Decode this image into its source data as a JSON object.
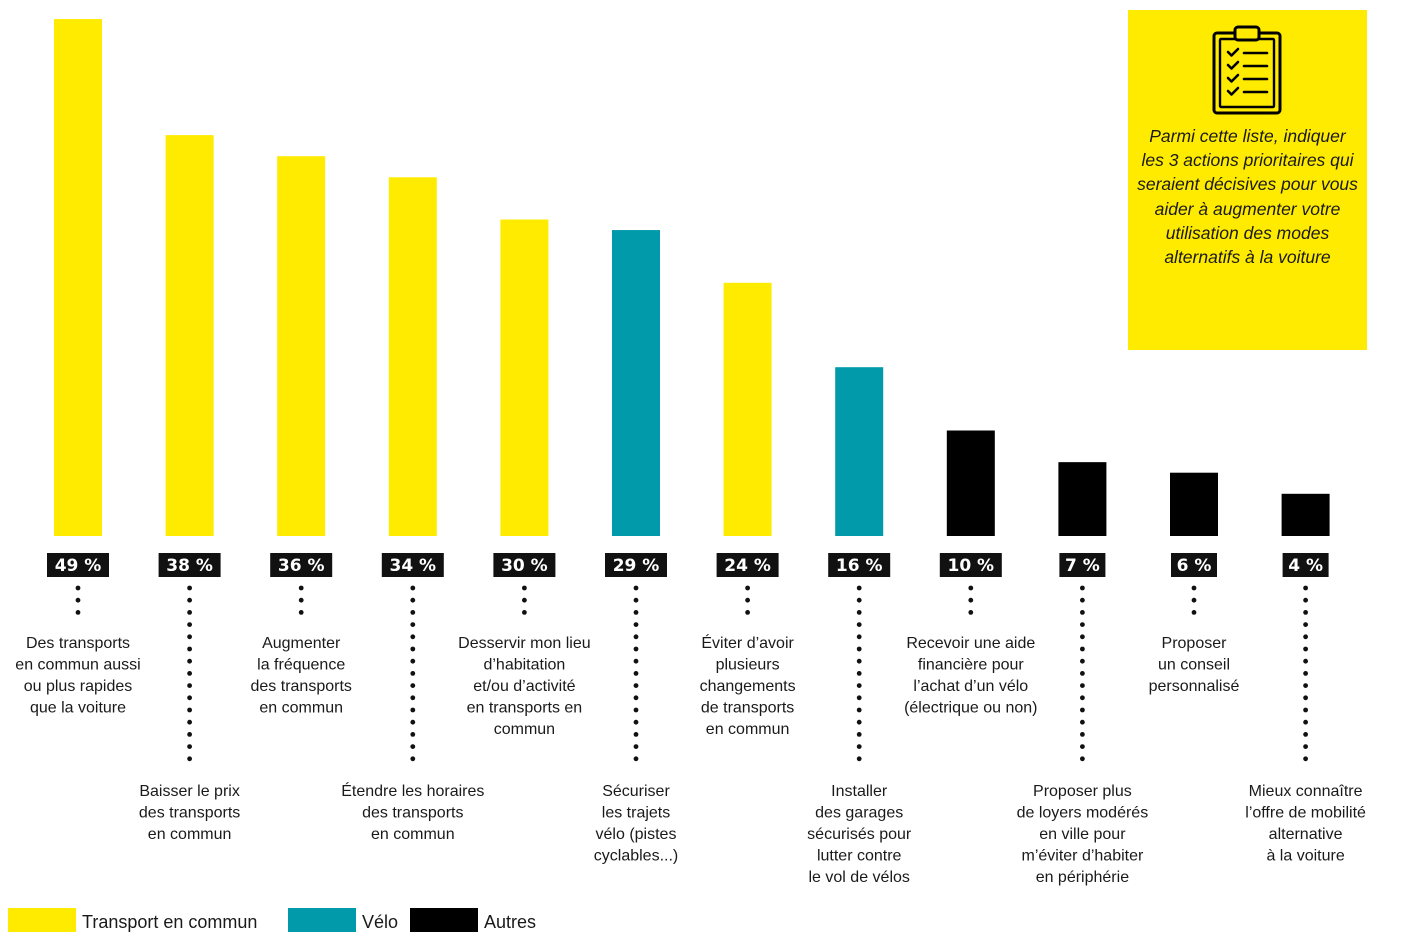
{
  "chart_data": {
    "type": "bar",
    "categories": [
      "Des transports en commun aussi ou plus rapides que la voiture",
      "Baisser le prix des transports en commun",
      "Augmenter la fréquence des transports en commun",
      "Étendre les horaires des transports en commun",
      "Desservir mon lieu d’habitation et/ou d’activité en transports en commun",
      "Sécuriser les trajets vélo (pistes cyclables...)",
      "Éviter d’avoir plusieurs changements de transports en commun",
      "Installer des garages sécurisés pour lutter contre le vol de vélos",
      "Recevoir une aide financière pour l’achat d’un vélo (électrique ou non)",
      "Proposer plus de loyers modérés en ville pour m’éviter d’habiter en périphérie",
      "Proposer un conseil personnalisé",
      "Mieux connaître l’offre de mobilité alternative à la voiture"
    ],
    "category_lines": [
      [
        "Des transports",
        "en commun aussi",
        "ou plus rapides",
        "que la voiture"
      ],
      [
        "Baisser le prix",
        "des transports",
        "en commun"
      ],
      [
        "Augmenter",
        "la fréquence",
        "des transports",
        "en commun"
      ],
      [
        "Étendre les horaires",
        "des transports",
        "en commun"
      ],
      [
        "Desservir mon lieu",
        "d’habitation",
        "et/ou d’activité",
        "en transports en",
        "commun"
      ],
      [
        "Sécuriser",
        "les trajets",
        "vélo (pistes",
        "cyclables...)"
      ],
      [
        "Éviter d’avoir",
        "plusieurs",
        "changements",
        "de transports",
        "en commun"
      ],
      [
        "Installer",
        "des garages",
        "sécurisés pour",
        "lutter contre",
        "le vol de vélos"
      ],
      [
        "Recevoir une aide",
        "financière pour",
        "l’achat d’un vélo",
        "(électrique ou non)"
      ],
      [
        "Proposer plus",
        "de loyers modérés",
        "en ville pour",
        "m’éviter d’habiter",
        "en périphérie"
      ],
      [
        "Proposer",
        "un conseil",
        "personnalisé"
      ],
      [
        "Mieux connaître",
        "l’offre de mobilité",
        "alternative",
        "à la voiture"
      ]
    ],
    "values": [
      49,
      38,
      36,
      34,
      30,
      29,
      24,
      16,
      10,
      7,
      6,
      4
    ],
    "value_labels": [
      "49 %",
      "38 %",
      "36 %",
      "34 %",
      "30 %",
      "29 %",
      "24 %",
      "16 %",
      "10 %",
      "7 %",
      "6 %",
      "4 %"
    ],
    "groups": [
      "transport",
      "transport",
      "transport",
      "transport",
      "transport",
      "velo",
      "transport",
      "velo",
      "autres",
      "autres",
      "autres",
      "autres"
    ],
    "label_position": [
      "high",
      "low",
      "high",
      "low",
      "high",
      "low",
      "high",
      "low",
      "high",
      "low",
      "high",
      "low"
    ],
    "legend": [
      {
        "key": "transport",
        "label": "Transport en commun",
        "color": "#FFEB00"
      },
      {
        "key": "velo",
        "label": "Vélo",
        "color": "#009AAA"
      },
      {
        "key": "autres",
        "label": "Autres",
        "color": "#000000"
      }
    ],
    "ylim": [
      0,
      50
    ],
    "grid": false,
    "legend_position": "bottom-left"
  },
  "question_box": {
    "text": "Parmi cette liste, indiquer les 3 actions prioritaires qui seraient décisives pour vous aider à augmenter votre utilisation des modes alternatifs à la voiture",
    "icon": "clipboard-checklist-icon",
    "color": "#FFEB00"
  }
}
